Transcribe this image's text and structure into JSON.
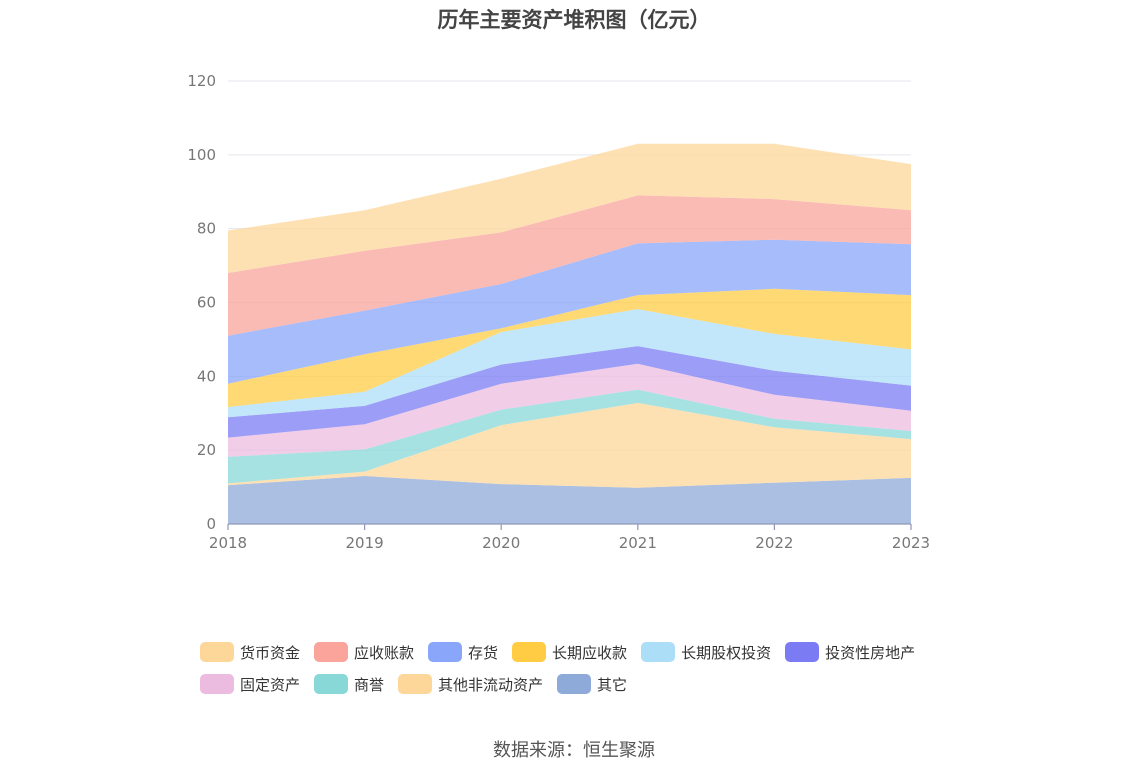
{
  "chart_data": {
    "type": "area",
    "stacked": true,
    "title": "历年主要资产堆积图（亿元）",
    "xlabel": "",
    "ylabel": "",
    "x": [
      "2018",
      "2019",
      "2020",
      "2021",
      "2022",
      "2023"
    ],
    "ylim": [
      0,
      120
    ],
    "yticks": [
      0,
      20,
      40,
      60,
      80,
      100,
      120
    ],
    "grid": true,
    "legend_position": "bottom",
    "series": [
      {
        "name": "其它",
        "color": "#8eaad8",
        "values": [
          10.5,
          13,
          10.8,
          9.8,
          11.2,
          12.5
        ]
      },
      {
        "name": "其他非流动资产",
        "color": "#fdd79a",
        "values": [
          0.5,
          1.2,
          16.0,
          23.0,
          15.0,
          10.5
        ]
      },
      {
        "name": "商誉",
        "color": "#88d8d8",
        "values": [
          7.2,
          6.0,
          4.2,
          3.6,
          2.3,
          2.2
        ]
      },
      {
        "name": "固定资产",
        "color": "#ecbce0",
        "values": [
          5.2,
          6.8,
          7.0,
          7.0,
          6.5,
          5.5
        ]
      },
      {
        "name": "投资性房地产",
        "color": "#7b7cf3",
        "values": [
          5.5,
          5.0,
          5.2,
          4.8,
          6.5,
          6.8
        ]
      },
      {
        "name": "长期股权投资",
        "color": "#addef8",
        "values": [
          2.8,
          3.8,
          8.8,
          10.0,
          10.0,
          9.8
        ]
      },
      {
        "name": "长期应收款",
        "color": "#ffcc44",
        "values": [
          6.3,
          10.2,
          1.0,
          3.8,
          12.2,
          14.7
        ]
      },
      {
        "name": "存货",
        "color": "#8aa6fa",
        "values": [
          13.0,
          11.8,
          12.0,
          14.0,
          13.3,
          13.8
        ]
      },
      {
        "name": "应收账款",
        "color": "#faa49c",
        "values": [
          17.0,
          16.2,
          14.0,
          13.0,
          11.0,
          9.2
        ]
      },
      {
        "name": "货币资金",
        "color": "#fdd79a",
        "values": [
          11.5,
          11.0,
          14.5,
          14.0,
          15.0,
          12.5
        ]
      }
    ]
  },
  "legend": [
    {
      "label": "货币资金",
      "color": "#fdd79a"
    },
    {
      "label": "应收账款",
      "color": "#faa49c"
    },
    {
      "label": "存货",
      "color": "#8aa6fa"
    },
    {
      "label": "长期应收款",
      "color": "#ffcc44"
    },
    {
      "label": "长期股权投资",
      "color": "#addef8"
    },
    {
      "label": "投资性房地产",
      "color": "#7b7cf3"
    },
    {
      "label": "固定资产",
      "color": "#ecbce0"
    },
    {
      "label": "商誉",
      "color": "#88d8d8"
    },
    {
      "label": "其他非流动资产",
      "color": "#fdd79a"
    },
    {
      "label": "其它",
      "color": "#8eaad8"
    }
  ],
  "source": "数据来源：恒生聚源"
}
